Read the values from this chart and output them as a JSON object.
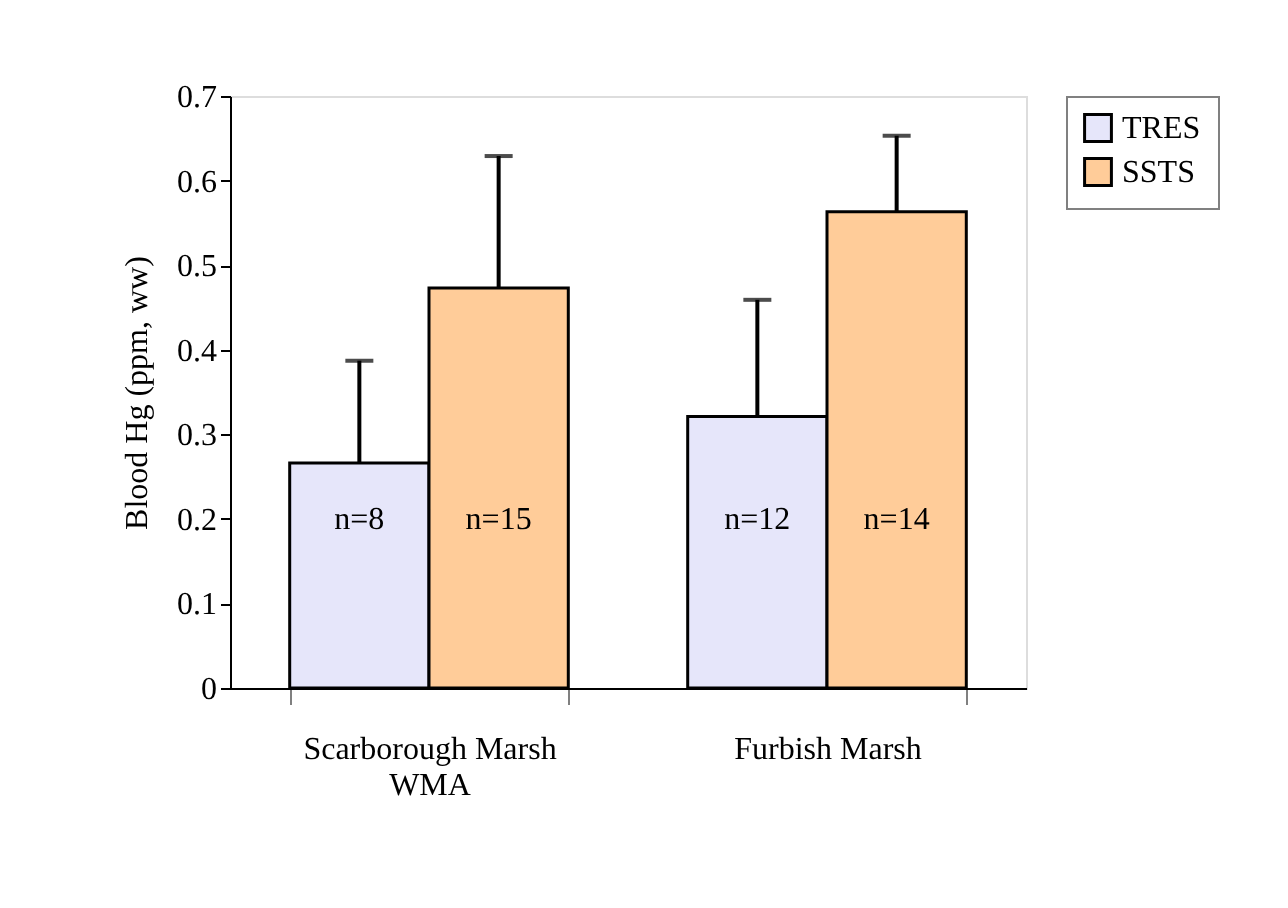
{
  "chart_data": {
    "type": "bar",
    "ylabel": "Blood Hg (ppm, ww)",
    "categories": [
      "Scarborough Marsh WMA",
      "Furbish Marsh"
    ],
    "series": [
      {
        "name": "TRES",
        "color": "#e6e6fa",
        "values": [
          0.266,
          0.321
        ],
        "errors": [
          [
            0.266,
            0.387
          ],
          [
            0.321,
            0.459
          ]
        ]
      },
      {
        "name": "SSTS",
        "color": "#ffcc99",
        "values": [
          0.473,
          0.563
        ],
        "errors": [
          [
            0.473,
            0.629
          ],
          [
            0.563,
            0.653
          ]
        ]
      }
    ],
    "annotations": [
      {
        "text": "n=8",
        "x": "Scarborough Marsh WMA",
        "y": 0.2
      },
      {
        "text": "n=15",
        "x": "Scarborough Marsh WMA",
        "y": 0.2
      },
      {
        "text": "n=12",
        "x": "Furbish Marsh",
        "y": 0.2
      },
      {
        "text": "n=14",
        "x": "Furbish Marsh",
        "y": 0.2
      }
    ],
    "ylim": [
      0,
      0.7
    ],
    "yticks": [
      0,
      0.1,
      0.2,
      0.3,
      0.4,
      0.5,
      0.6,
      0.7
    ],
    "grid": false,
    "legend": "right"
  }
}
